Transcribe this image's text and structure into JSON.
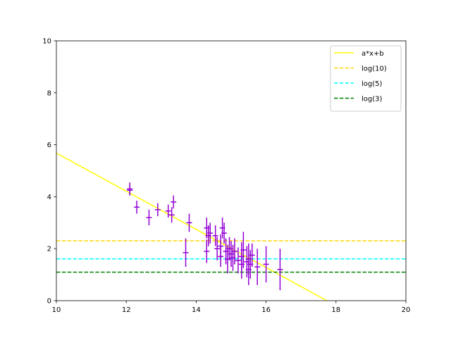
{
  "chart_data": {
    "type": "scatter",
    "title": "",
    "xlabel": "",
    "ylabel": "",
    "xlim": [
      10,
      20
    ],
    "ylim": [
      0,
      10
    ],
    "xticks": [
      10,
      12,
      14,
      16,
      18,
      20
    ],
    "yticks": [
      0,
      2,
      4,
      6,
      8,
      10
    ],
    "grid": false,
    "legend_position": "top-right",
    "series": [
      {
        "name": "a*x+b",
        "kind": "line",
        "style": "solid",
        "color": "#ffff00",
        "x": [
          10,
          17.74
        ],
        "y": [
          5.68,
          0
        ]
      },
      {
        "name": "log(10)",
        "kind": "hline",
        "style": "dashed",
        "color": "#ffd700",
        "y": 2.303
      },
      {
        "name": "log(5)",
        "kind": "hline",
        "style": "dashed",
        "color": "#00ffff",
        "y": 1.609
      },
      {
        "name": "log(3)",
        "kind": "hline",
        "style": "dashed",
        "color": "#008000",
        "y": 1.099
      }
    ],
    "errorbar_data": {
      "color": "#9400d3",
      "x_err": 0.08,
      "points": [
        {
          "x": 12.1,
          "y": 4.3,
          "yerr": 0.25
        },
        {
          "x": 12.1,
          "y": 4.25,
          "yerr": 0.2
        },
        {
          "x": 12.3,
          "y": 3.6,
          "yerr": 0.25
        },
        {
          "x": 12.65,
          "y": 3.2,
          "yerr": 0.3
        },
        {
          "x": 12.9,
          "y": 3.5,
          "yerr": 0.25
        },
        {
          "x": 13.2,
          "y": 3.45,
          "yerr": 0.25
        },
        {
          "x": 13.3,
          "y": 3.3,
          "yerr": 0.3
        },
        {
          "x": 13.35,
          "y": 3.8,
          "yerr": 0.25
        },
        {
          "x": 13.7,
          "y": 1.85,
          "yerr": 0.55
        },
        {
          "x": 13.8,
          "y": 3.0,
          "yerr": 0.35
        },
        {
          "x": 14.3,
          "y": 2.8,
          "yerr": 0.4
        },
        {
          "x": 14.3,
          "y": 1.9,
          "yerr": 0.45
        },
        {
          "x": 14.35,
          "y": 2.5,
          "yerr": 0.4
        },
        {
          "x": 14.4,
          "y": 2.6,
          "yerr": 0.4
        },
        {
          "x": 14.55,
          "y": 2.5,
          "yerr": 0.4
        },
        {
          "x": 14.6,
          "y": 2.0,
          "yerr": 0.45
        },
        {
          "x": 14.7,
          "y": 2.1,
          "yerr": 0.45
        },
        {
          "x": 14.7,
          "y": 1.7,
          "yerr": 0.4
        },
        {
          "x": 14.75,
          "y": 2.8,
          "yerr": 0.4
        },
        {
          "x": 14.8,
          "y": 2.6,
          "yerr": 0.4
        },
        {
          "x": 14.85,
          "y": 1.9,
          "yerr": 0.5
        },
        {
          "x": 14.9,
          "y": 1.6,
          "yerr": 0.55
        },
        {
          "x": 14.95,
          "y": 2.0,
          "yerr": 0.45
        },
        {
          "x": 15.0,
          "y": 1.8,
          "yerr": 0.5
        },
        {
          "x": 15.05,
          "y": 1.65,
          "yerr": 0.5
        },
        {
          "x": 15.1,
          "y": 1.9,
          "yerr": 0.5
        },
        {
          "x": 15.2,
          "y": 1.55,
          "yerr": 0.5
        },
        {
          "x": 15.3,
          "y": 1.4,
          "yerr": 0.55
        },
        {
          "x": 15.3,
          "y": 1.7,
          "yerr": 0.55
        },
        {
          "x": 15.35,
          "y": 1.95,
          "yerr": 0.7
        },
        {
          "x": 15.45,
          "y": 1.5,
          "yerr": 0.6
        },
        {
          "x": 15.5,
          "y": 1.2,
          "yerr": 0.6
        },
        {
          "x": 15.5,
          "y": 1.6,
          "yerr": 0.6
        },
        {
          "x": 15.55,
          "y": 1.4,
          "yerr": 0.55
        },
        {
          "x": 15.6,
          "y": 1.75,
          "yerr": 0.45
        },
        {
          "x": 15.75,
          "y": 1.3,
          "yerr": 0.7
        },
        {
          "x": 16.0,
          "y": 1.4,
          "yerr": 0.7
        },
        {
          "x": 16.4,
          "y": 1.2,
          "yerr": 0.8
        }
      ]
    }
  }
}
